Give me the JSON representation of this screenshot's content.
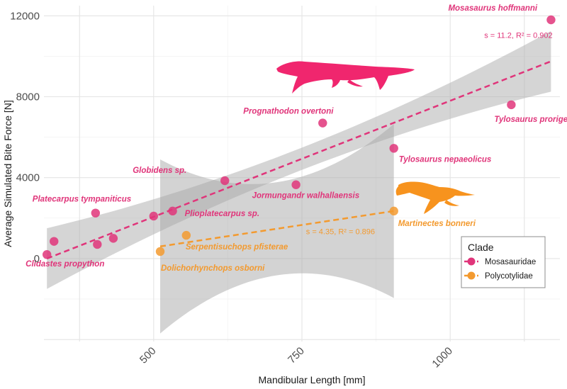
{
  "chart_data": {
    "type": "scatter",
    "xlabel": "Mandibular Length [mm]",
    "ylabel": "Average Simulated Bite Force [N]",
    "xlim": [
      315,
      1185
    ],
    "ylim": [
      -4100,
      12500
    ],
    "xticks": [
      500,
      750,
      1000
    ],
    "yticks": [
      0,
      4000,
      8000,
      12000
    ],
    "grid": true,
    "legend_title": "Clade",
    "legend_position": "bottom-right",
    "series": [
      {
        "name": "Mosasauridae",
        "color": "#e0357a",
        "points": [
          {
            "label": "Clidastes propython",
            "x": 320,
            "y": 200
          },
          {
            "label": "",
            "x": 332,
            "y": 850
          },
          {
            "label": "Platecarpus tympaniticus",
            "x": 402,
            "y": 2250
          },
          {
            "label": "",
            "x": 405,
            "y": 700
          },
          {
            "label": "",
            "x": 432,
            "y": 1000
          },
          {
            "label": "",
            "x": 500,
            "y": 2100
          },
          {
            "label": "Plioplatecarpus sp.",
            "x": 532,
            "y": 2350
          },
          {
            "label": "Globidens sp.",
            "x": 620,
            "y": 3850
          },
          {
            "label": "Jormungandr walhallaensis",
            "x": 740,
            "y": 3650
          },
          {
            "label": "Prognathodon overtoni",
            "x": 785,
            "y": 6700
          },
          {
            "label": "Tylosaurus nepaeolicus",
            "x": 905,
            "y": 5450
          },
          {
            "label": "Tylosaurus proriger",
            "x": 1103,
            "y": 7600
          },
          {
            "label": "Mosasaurus hoffmanni",
            "x": 1170,
            "y": 11800
          }
        ],
        "fit": {
          "x": [
            320,
            1170
          ],
          "y": [
            0,
            9750
          ],
          "annotation": "s = 11.2, R² = 0.902"
        }
      },
      {
        "name": "Polycotylidae",
        "color": "#f39a2f",
        "points": [
          {
            "label": "Dolichorhynchops osborni",
            "x": 511,
            "y": 350
          },
          {
            "label": "Serpentisuchops pfisterae",
            "x": 555,
            "y": 1150
          },
          {
            "label": "Martinectes bonneri",
            "x": 905,
            "y": 2350
          }
        ],
        "fit": {
          "x": [
            511,
            905
          ],
          "y": [
            600,
            2350
          ],
          "annotation": "s = 4.35, R² = 0.896"
        }
      }
    ]
  },
  "icons": [
    "mosasaur-silhouette-icon",
    "plesiosaur-silhouette-icon"
  ]
}
